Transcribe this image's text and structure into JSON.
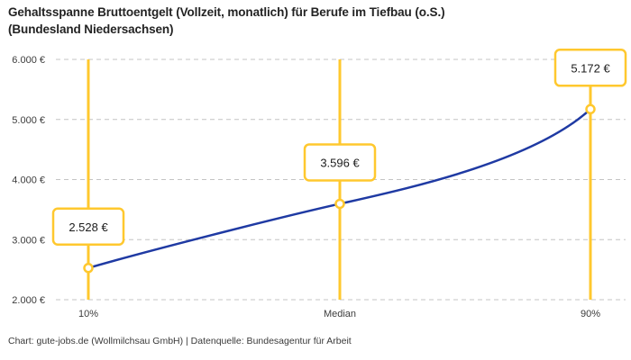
{
  "header": {
    "title_full": "Gehaltsspanne Bruttoentgelt (Vollzeit, monatlich) für Berufe im Tiefbau (o.S.) (Bundesland Niedersachsen)"
  },
  "footer": {
    "credit": "Chart: gute-jobs.de (Wollmilchsau GmbH) | Datenquelle: Bundesagentur für Arbeit"
  },
  "chart_data": {
    "type": "line",
    "title": "Gehaltsspanne Bruttoentgelt (Vollzeit, monatlich) für Berufe im Tiefbau (o.S.) (Bundesland Niedersachsen)",
    "title_lines": [
      "Gehaltsspanne Bruttoentgelt (Vollzeit, monatlich) für Berufe im Tiefbau (o.S.)",
      "(Bundesland Niedersachsen)"
    ],
    "categories": [
      "10%",
      "Median",
      "90%"
    ],
    "values": [
      2528,
      3596,
      5172
    ],
    "value_labels": [
      "2.528 €",
      "3.596 €",
      "5.172 €"
    ],
    "xlabel": "",
    "ylabel": "",
    "ylim": [
      2000,
      6000
    ],
    "yticks": [
      2000,
      3000,
      4000,
      5000,
      6000
    ],
    "ytick_labels": [
      "2.000 €",
      "3.000 €",
      "4.000 €",
      "5.000 €",
      "6.000 €"
    ],
    "grid": "horizontal-dashed",
    "legend": "none",
    "marker": "open-circle",
    "colors": {
      "curve": "#1f3aa3",
      "percentile_line": "#ffc82e",
      "marker_stroke": "#ffc82e",
      "marker_fill": "#ffffff",
      "label_box_border": "#ffc82e",
      "label_box_fill": "#ffffff",
      "grid": "#c4c4c4",
      "tick_text": "#3c3c3c",
      "title_text": "#232323",
      "background": "#ffffff"
    }
  }
}
